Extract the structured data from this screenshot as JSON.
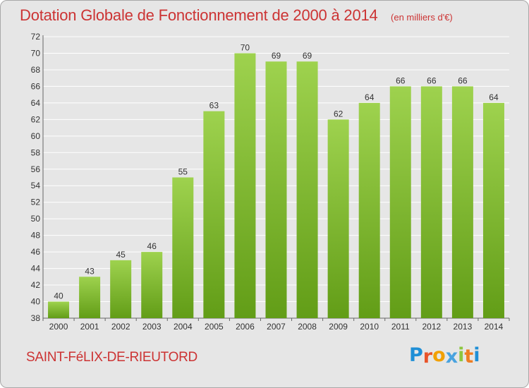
{
  "header": {
    "title": "Dotation Globale de Fonctionnement de 2000 à 2014",
    "unit": "(en milliers d'€)"
  },
  "footer": {
    "commune": "SAINT-FéLIX-DE-RIEUTORD",
    "brand_letters": [
      "P",
      "r",
      "o",
      "x",
      "i",
      "t",
      "i"
    ],
    "brand_colors": [
      "#1f8fd6",
      "#e8542a",
      "#f2a000",
      "#4aa3df",
      "#8dc63f",
      "#ee7d22",
      "#1f8fd6"
    ]
  },
  "colors": {
    "bar_top": "#9ed24e",
    "bar_bottom": "#629d17",
    "background": "#e6e6e6",
    "grid": "#ffffff",
    "title": "#cc3333"
  },
  "chart_data": {
    "type": "bar",
    "title": "Dotation Globale de Fonctionnement de 2000 à 2014",
    "xlabel": "",
    "ylabel": "",
    "categories": [
      "2000",
      "2001",
      "2002",
      "2003",
      "2004",
      "2005",
      "2006",
      "2007",
      "2008",
      "2009",
      "2010",
      "2011",
      "2012",
      "2013",
      "2014"
    ],
    "values": [
      40,
      43,
      45,
      46,
      55,
      63,
      70,
      69,
      69,
      62,
      64,
      66,
      66,
      66,
      64
    ],
    "ylim": [
      38,
      72
    ],
    "yticks": [
      38,
      40,
      42,
      44,
      46,
      48,
      50,
      52,
      54,
      56,
      58,
      60,
      62,
      64,
      66,
      68,
      70,
      72
    ],
    "grid": true,
    "legend": "none"
  }
}
